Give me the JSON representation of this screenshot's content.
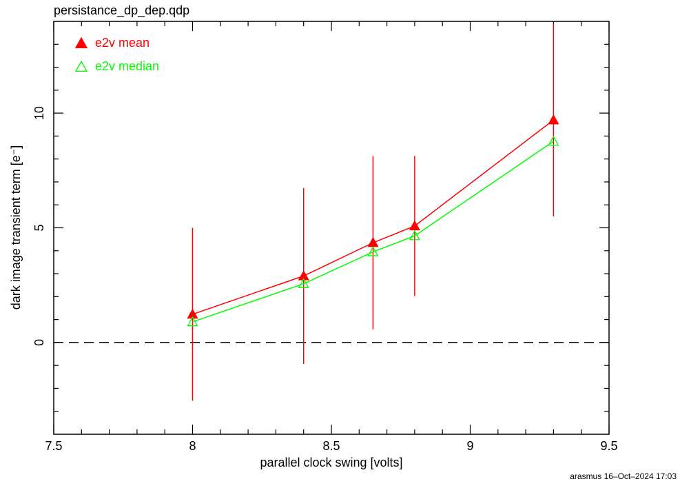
{
  "chart_data": {
    "type": "line",
    "title": "persistance_dp_dep.qdp",
    "xlabel": "parallel clock swing [volts]",
    "ylabel": "dark image transient term [e⁻]",
    "footer": "arasmus 16–Oct–2024 17:03",
    "x": [
      8,
      8.4,
      8.65,
      8.8,
      9.3
    ],
    "series": [
      {
        "name": "e2v mean",
        "color": "#ff0000",
        "marker": "filled-triangle",
        "values": [
          1.23,
          2.9,
          4.35,
          5.08,
          9.7
        ],
        "errors": [
          3.77,
          3.83,
          3.77,
          3.05,
          4.2
        ]
      },
      {
        "name": "e2v median",
        "color": "#00ff00",
        "marker": "open-triangle",
        "values": [
          0.9,
          2.56,
          3.95,
          4.65,
          8.77
        ]
      }
    ],
    "xlim": [
      7.5,
      9.5
    ],
    "ylim": [
      -4,
      14
    ],
    "xticks": [
      7.5,
      8,
      8.5,
      9,
      9.5
    ],
    "yticks": [
      0,
      5,
      10
    ],
    "x_minor_ticks": [
      7.6,
      7.7,
      7.8,
      7.9,
      8.1,
      8.2,
      8.3,
      8.4,
      8.6,
      8.7,
      8.8,
      8.9,
      9.1,
      9.2,
      9.3,
      9.4
    ],
    "y_minor_ticks": [
      -3,
      -2,
      -1,
      1,
      2,
      3,
      4,
      6,
      7,
      8,
      9,
      11,
      12,
      13
    ],
    "hline": 0,
    "legend": "upper left"
  }
}
